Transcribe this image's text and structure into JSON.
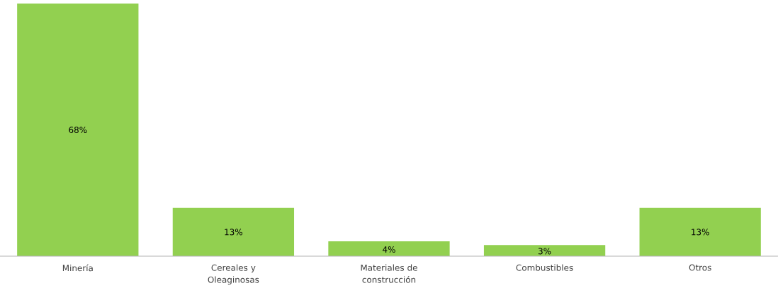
{
  "chart_data": {
    "type": "bar",
    "categories": [
      "Minería",
      "Cereales y Oleaginosas",
      "Materiales de construcción",
      "Combustibles",
      "Otros"
    ],
    "values": [
      68,
      13,
      4,
      3,
      13
    ],
    "value_labels": [
      "68%",
      "13%",
      "4%",
      "3%",
      "13%"
    ],
    "color": "#92d050"
  }
}
